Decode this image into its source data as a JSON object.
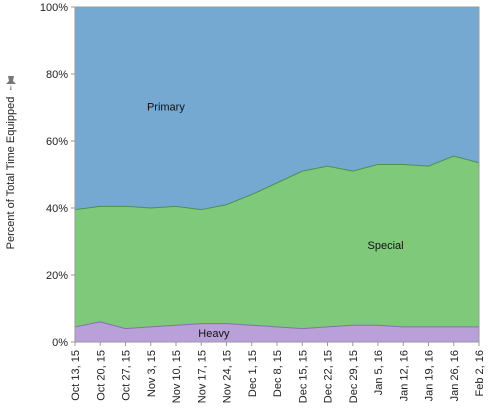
{
  "chart_data": {
    "type": "area",
    "stacked": true,
    "normalized": true,
    "title": "",
    "xlabel": "",
    "ylabel": "Percent of Total Time Equipped",
    "ylim": [
      0,
      100
    ],
    "y_ticks": [
      "0%",
      "20%",
      "40%",
      "60%",
      "80%",
      "100%"
    ],
    "y_tick_values": [
      0,
      20,
      40,
      60,
      80,
      100
    ],
    "grid": true,
    "categories": [
      "Oct 13, 15",
      "Oct 20, 15",
      "Oct 27, 15",
      "Nov 3, 15",
      "Nov 10, 15",
      "Nov 17, 15",
      "Nov 24, 15",
      "Dec 1, 15",
      "Dec 8, 15",
      "Dec 15, 15",
      "Dec 22, 15",
      "Dec 29, 15",
      "Jan 5, 16",
      "Jan 12, 16",
      "Jan 19, 16",
      "Jan 26, 16",
      "Feb 2, 16"
    ],
    "series": [
      {
        "name": "Heavy",
        "color": "#b9a0d8",
        "values": [
          4.5,
          6,
          4,
          4.5,
          5,
          5.5,
          5.5,
          5,
          4.5,
          4,
          4.5,
          5,
          5,
          4.5,
          4.5,
          4.5,
          4.5
        ]
      },
      {
        "name": "Special",
        "color": "#7fc97a",
        "values": [
          35,
          34.5,
          36.5,
          35.5,
          35.5,
          34,
          35.5,
          39,
          43,
          47,
          48,
          46,
          48,
          48.5,
          48,
          51,
          49
        ]
      },
      {
        "name": "Primary",
        "color": "#75a9d2",
        "values": [
          60.5,
          59.5,
          59.5,
          60,
          59.5,
          60.5,
          59,
          56,
          52.5,
          49,
          47.5,
          49,
          47,
          47,
          47.5,
          44.5,
          46.5
        ]
      }
    ]
  },
  "icons": {
    "pin": "pin-icon"
  }
}
